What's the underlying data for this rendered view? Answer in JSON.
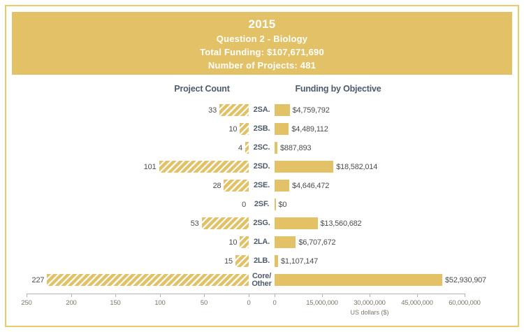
{
  "header": {
    "year": "2015",
    "subtitle": "Question 2 - Biology",
    "total_funding": "Total Funding: $107,671,690",
    "project_total": "Number of Projects: 481"
  },
  "chart_data": {
    "type": "bar",
    "layout": "back-to-back horizontal bars; left axis reversed (hatched project counts), right axis solid funding bars",
    "left_title": "Project Count",
    "right_title": "Funding by Objective",
    "xlabel": "US dollars ($)",
    "grid": false,
    "left_axis": {
      "range": [
        0,
        250
      ],
      "ticks": [
        "250",
        "200",
        "150",
        "100",
        "50",
        "0"
      ]
    },
    "right_axis": {
      "range": [
        0,
        60000000
      ],
      "ticks": [
        "0",
        "15,000,000",
        "30,000,000",
        "45,000,000",
        "60,000,000"
      ]
    },
    "rows": [
      {
        "label": "2SA.",
        "count": 33,
        "count_label": "33",
        "funding": 4759792,
        "funding_label": "$4,759,792"
      },
      {
        "label": "2SB.",
        "count": 10,
        "count_label": "10",
        "funding": 4489112,
        "funding_label": "$4,489,112"
      },
      {
        "label": "2SC.",
        "count": 4,
        "count_label": "4",
        "funding": 887893,
        "funding_label": "$887,893"
      },
      {
        "label": "2SD.",
        "count": 101,
        "count_label": "101",
        "funding": 18582014,
        "funding_label": "$18,582,014"
      },
      {
        "label": "2SE.",
        "count": 28,
        "count_label": "28",
        "funding": 4646472,
        "funding_label": "$4,646,472"
      },
      {
        "label": "2SF.",
        "count": 0,
        "count_label": "0",
        "funding": 0,
        "funding_label": "$0"
      },
      {
        "label": "2SG.",
        "count": 53,
        "count_label": "53",
        "funding": 13560682,
        "funding_label": "$13,560,682"
      },
      {
        "label": "2LA.",
        "count": 10,
        "count_label": "10",
        "funding": 6707672,
        "funding_label": "$6,707,672"
      },
      {
        "label": "2LB.",
        "count": 15,
        "count_label": "15",
        "funding": 1107147,
        "funding_label": "$1,107,147"
      },
      {
        "label": "Core/ Other",
        "count": 227,
        "count_label": "227",
        "funding": 52930907,
        "funding_label": "$52,930,907"
      }
    ],
    "colors": {
      "gold": "#e2c167",
      "frame_border": "#ecca6a",
      "category_text": "#4e5b6b",
      "value_text": "#4d4d4d",
      "axis_text": "#7d7668",
      "axis_line": "#b3b3b3",
      "header_text": "#ffffff"
    }
  }
}
